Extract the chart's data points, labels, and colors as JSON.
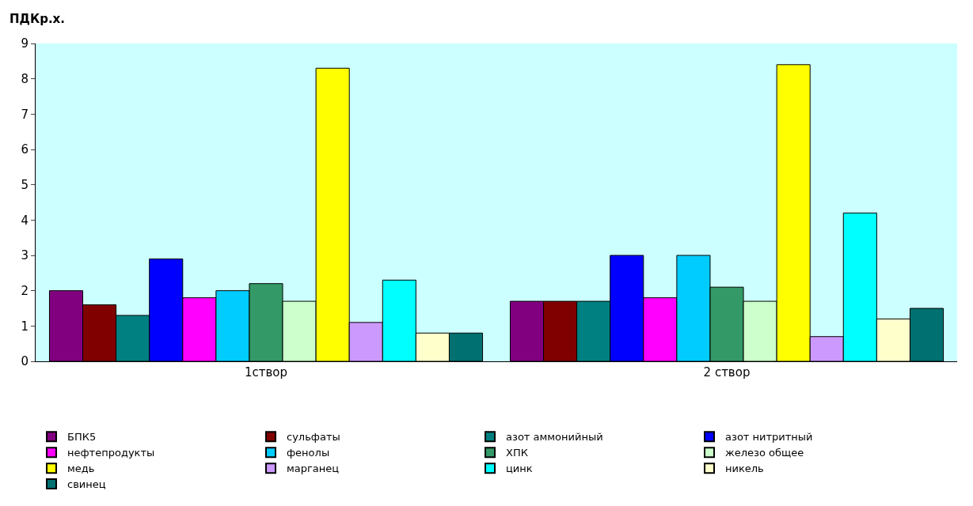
{
  "chart_data": {
    "type": "bar",
    "ylabel": "ПДКр.х.",
    "categories": [
      "1створ",
      "2 створ"
    ],
    "ylim": [
      0,
      9
    ],
    "yticks": [
      0,
      1,
      2,
      3,
      4,
      5,
      6,
      7,
      8,
      9
    ],
    "grid": false,
    "legend": "bottom",
    "series": [
      {
        "name": "БПК5",
        "color": "#800080",
        "values": [
          2.0,
          1.7
        ]
      },
      {
        "name": "сульфаты",
        "color": "#800000",
        "values": [
          1.6,
          1.7
        ]
      },
      {
        "name": "азот аммонийный",
        "color": "#008080",
        "values": [
          1.3,
          1.7
        ]
      },
      {
        "name": "азот нитритный",
        "color": "#0000ff",
        "values": [
          2.9,
          3.0
        ]
      },
      {
        "name": "нефтепродукты",
        "color": "#ff00ff",
        "values": [
          1.8,
          1.8
        ]
      },
      {
        "name": "фенолы",
        "color": "#00ccff",
        "values": [
          2.0,
          3.0
        ]
      },
      {
        "name": "ХПК",
        "color": "#339966",
        "values": [
          2.2,
          2.1
        ]
      },
      {
        "name": "железо общее",
        "color": "#ccffcc",
        "values": [
          1.7,
          1.7
        ]
      },
      {
        "name": "медь",
        "color": "#ffff00",
        "values": [
          8.3,
          8.4
        ]
      },
      {
        "name": "марганец",
        "color": "#cc99ff",
        "values": [
          1.1,
          0.7
        ]
      },
      {
        "name": "цинк",
        "color": "#00ffff",
        "values": [
          2.3,
          4.2
        ]
      },
      {
        "name": "никель",
        "color": "#ffffcc",
        "values": [
          0.8,
          1.2
        ]
      },
      {
        "name": "свинец",
        "color": "#007070",
        "values": [
          0.8,
          1.5
        ]
      }
    ]
  }
}
